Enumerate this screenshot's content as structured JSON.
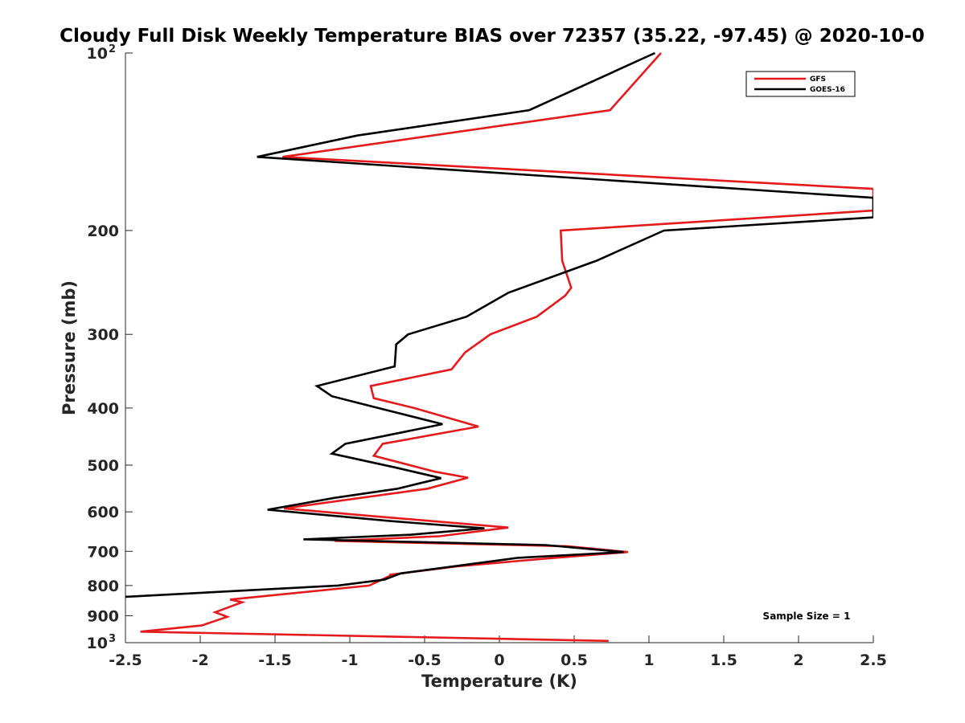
{
  "chart_data": {
    "type": "line",
    "title": "Cloudy Full Disk Weekly Temperature BIAS over 72357 (35.22, -97.45) @ 2020-10-0",
    "xlabel": "Temperature (K)",
    "ylabel": "Pressure (mb)",
    "xlim": [
      -2.5,
      2.5
    ],
    "ylim": [
      100,
      1000
    ],
    "y_scale": "log",
    "y_reversed": true,
    "x_ticks": [
      "-2.5",
      "-2",
      "-1.5",
      "-1",
      "-0.5",
      "0",
      "0.5",
      "1",
      "1.5",
      "2",
      "2.5"
    ],
    "y_ticks": [
      {
        "value": 100,
        "label": "10",
        "exp": "2"
      },
      {
        "value": 200,
        "label": "200"
      },
      {
        "value": 300,
        "label": "300"
      },
      {
        "value": 400,
        "label": "400"
      },
      {
        "value": 500,
        "label": "500"
      },
      {
        "value": 600,
        "label": "600"
      },
      {
        "value": 700,
        "label": "700"
      },
      {
        "value": 800,
        "label": "800"
      },
      {
        "value": 900,
        "label": "900"
      },
      {
        "value": 1000,
        "label": "10",
        "exp": "3"
      }
    ],
    "legend_position": "top-right",
    "grid": false,
    "annotation": "Sample Size = 1",
    "series": [
      {
        "name": "GFS",
        "color": "#e41a1c",
        "points": [
          [
            1.08,
            100
          ],
          [
            0.74,
            125
          ],
          [
            -1.45,
            150
          ],
          [
            2.5,
            170
          ],
          [
            2.5,
            185
          ],
          [
            0.41,
            200
          ],
          [
            0.42,
            225
          ],
          [
            0.48,
            250
          ],
          [
            0.44,
            258
          ],
          [
            0.25,
            280
          ],
          [
            -0.06,
            300
          ],
          [
            -0.23,
            322
          ],
          [
            -0.32,
            344
          ],
          [
            -0.86,
            367
          ],
          [
            -0.84,
            385
          ],
          [
            -0.57,
            400
          ],
          [
            -0.14,
            430
          ],
          [
            -0.78,
            460
          ],
          [
            -0.84,
            482
          ],
          [
            -0.43,
            513
          ],
          [
            -0.21,
            525
          ],
          [
            -0.48,
            548
          ],
          [
            -1.44,
            592
          ],
          [
            -0.85,
            610
          ],
          [
            0.06,
            638
          ],
          [
            -0.4,
            660
          ],
          [
            -1.1,
            672
          ],
          [
            0.45,
            686
          ],
          [
            0.86,
            702
          ],
          [
            0.31,
            720
          ],
          [
            -0.28,
            742
          ],
          [
            -0.73,
            767
          ],
          [
            -0.73,
            770
          ],
          [
            -0.87,
            800
          ],
          [
            -1.8,
            845
          ],
          [
            -1.72,
            854
          ],
          [
            -1.9,
            888
          ],
          [
            -1.82,
            904
          ],
          [
            -1.99,
            935
          ],
          [
            -2.4,
            958
          ],
          [
            0.73,
            993
          ]
        ]
      },
      {
        "name": "GOES-16",
        "color": "#000000",
        "points": [
          [
            1.04,
            100
          ],
          [
            0.2,
            125
          ],
          [
            -0.95,
            138
          ],
          [
            -1.62,
            150
          ],
          [
            2.5,
            176
          ],
          [
            2.5,
            190
          ],
          [
            1.1,
            200
          ],
          [
            0.65,
            225
          ],
          [
            0.06,
            255
          ],
          [
            -0.22,
            280
          ],
          [
            -0.61,
            300
          ],
          [
            -0.69,
            312
          ],
          [
            -0.7,
            340
          ],
          [
            -1.22,
            367
          ],
          [
            -1.12,
            382
          ],
          [
            -0.81,
            400
          ],
          [
            -0.38,
            426
          ],
          [
            -1.03,
            460
          ],
          [
            -1.12,
            478
          ],
          [
            -0.69,
            505
          ],
          [
            -0.39,
            526
          ],
          [
            -0.68,
            548
          ],
          [
            -1.1,
            568
          ],
          [
            -1.55,
            595
          ],
          [
            -0.73,
            622
          ],
          [
            -0.1,
            640
          ],
          [
            -0.59,
            656
          ],
          [
            -1.31,
            668
          ],
          [
            0.31,
            683
          ],
          [
            0.83,
            702
          ],
          [
            0.12,
            718
          ],
          [
            -0.66,
            763
          ],
          [
            -0.77,
            782
          ],
          [
            -1.08,
            800
          ],
          [
            -2.5,
            836
          ]
        ]
      }
    ]
  }
}
